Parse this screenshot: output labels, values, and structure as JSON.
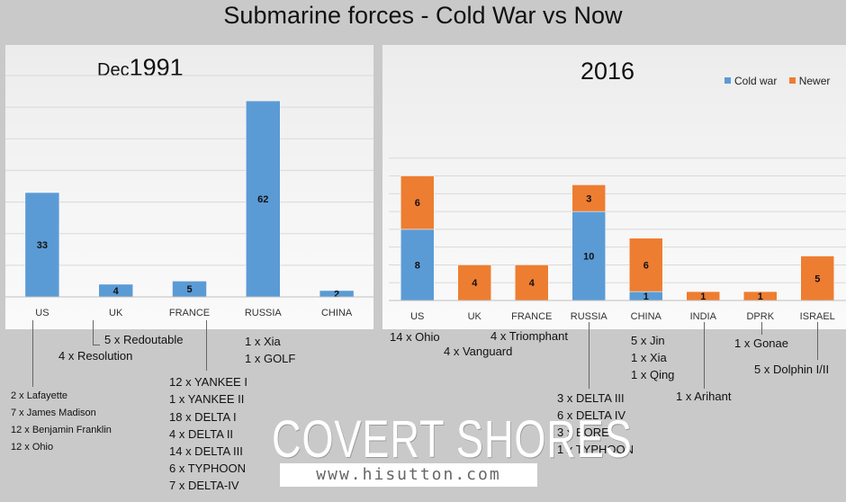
{
  "title": "Submarine forces - Cold War vs Now",
  "colors": {
    "cold_war": "#5b9bd5",
    "newer": "#ed7d31",
    "grid": "#d9d9d9"
  },
  "chart_data": [
    {
      "type": "bar",
      "title_prefix": "Dec",
      "title": "1991",
      "categories": [
        "US",
        "UK",
        "FRANCE",
        "RUSSIA",
        "CHINA"
      ],
      "values": [
        33,
        4,
        5,
        62,
        2
      ],
      "ylim": [
        0,
        70
      ],
      "grid": true
    },
    {
      "type": "bar",
      "stacked": true,
      "title": "2016",
      "categories": [
        "US",
        "UK",
        "FRANCE",
        "RUSSIA",
        "CHINA",
        "INDIA",
        "DPRK",
        "ISRAEL"
      ],
      "series": [
        {
          "name": "Cold war",
          "values": [
            8,
            0,
            0,
            10,
            1,
            0,
            0,
            0
          ]
        },
        {
          "name": "Newer",
          "values": [
            6,
            4,
            4,
            3,
            6,
            1,
            1,
            5
          ]
        }
      ],
      "ylim": [
        0,
        18
      ],
      "legend": "top-right",
      "grid": true
    }
  ],
  "notes_1991": {
    "us": [
      "2 x Lafayette",
      "7 x James Madison",
      "12 x Benjamin Franklin",
      "12 x Ohio"
    ],
    "uk": "4 x Resolution",
    "france": "5 x Redoutable",
    "russia": [
      "12 x YANKEE I",
      "1 x YANKEE II",
      "18 x DELTA I",
      "4 x DELTA II",
      "14 x DELTA III",
      "6 x TYPHOON",
      "7 x DELTA-IV"
    ],
    "china": [
      "1 x Xia",
      "1 x GOLF"
    ]
  },
  "notes_2016": {
    "us": "14 x Ohio",
    "uk": "4 x Vanguard",
    "france": "4 x Triomphant",
    "russia": [
      "3 x DELTA III",
      "6 x DELTA IV",
      "3 x BOREI",
      "1 x TYPHOON"
    ],
    "china": [
      "5 x Jin",
      "1 x Xia",
      "1 x Qing"
    ],
    "india": "1 x Arihant",
    "dprk": "1 x Gonae",
    "israel": "5 x Dolphin I/II"
  },
  "logo": {
    "brand": "COVERT SHORES",
    "url": "www.hisutton.com"
  }
}
